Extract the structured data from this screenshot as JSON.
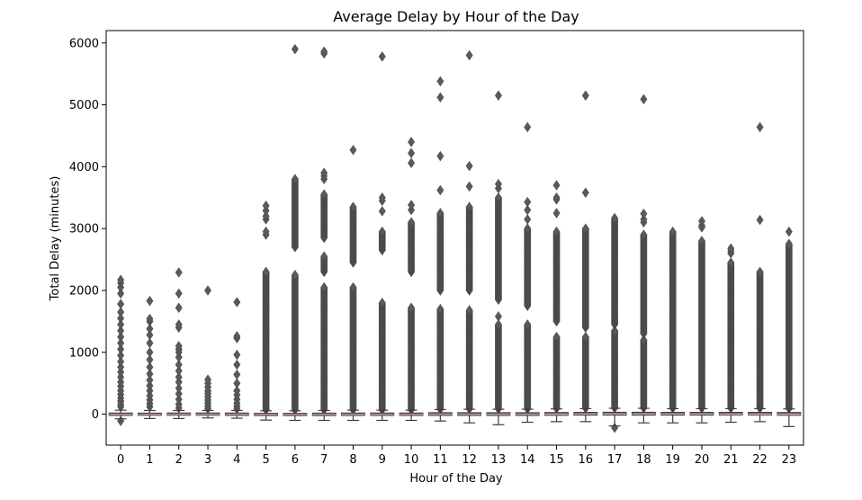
{
  "chart_data": {
    "type": "box",
    "title": "Average Delay by Hour of the Day",
    "xlabel": "Hour of the Day",
    "ylabel": "Total Delay (minutes)",
    "ylim": [
      -500,
      6200
    ],
    "yticks": [
      0,
      1000,
      2000,
      3000,
      4000,
      5000,
      6000
    ],
    "categories": [
      "0",
      "1",
      "2",
      "3",
      "4",
      "5",
      "6",
      "7",
      "8",
      "9",
      "10",
      "11",
      "12",
      "13",
      "14",
      "15",
      "16",
      "17",
      "18",
      "19",
      "20",
      "21",
      "22",
      "23"
    ],
    "grid": false,
    "colors": {
      "box": "#6a6a6a",
      "outlier": "#5a5a5a",
      "median": "#d9a8a8"
    },
    "boxes": [
      {
        "q1": -20,
        "median": -5,
        "q3": 20,
        "whisker_low": -75,
        "whisker_high": 65,
        "outliers": [
          -110,
          120,
          160,
          210,
          260,
          320,
          380,
          450,
          520,
          600,
          680,
          760,
          850,
          950,
          1050,
          1150,
          1250,
          1350,
          1450,
          1550,
          1650,
          1780,
          1950,
          2050,
          2120,
          2170
        ]
      },
      {
        "q1": -18,
        "median": -5,
        "q3": 18,
        "whisker_low": -70,
        "whisker_high": 60,
        "outliers": [
          120,
          170,
          230,
          300,
          380,
          460,
          550,
          650,
          760,
          880,
          1000,
          1150,
          1280,
          1380,
          1500,
          1540,
          1830
        ]
      },
      {
        "q1": -18,
        "median": -5,
        "q3": 20,
        "whisker_low": -70,
        "whisker_high": 60,
        "outliers": [
          100,
          160,
          240,
          330,
          420,
          520,
          600,
          700,
          800,
          920,
          1000,
          1050,
          1100,
          1400,
          1450,
          1720,
          1950,
          2290
        ]
      },
      {
        "q1": -18,
        "median": -5,
        "q3": 20,
        "whisker_low": -60,
        "whisker_high": 60,
        "outliers": [
          90,
          130,
          180,
          230,
          280,
          330,
          380,
          440,
          500,
          560,
          2000
        ]
      },
      {
        "q1": -20,
        "median": -5,
        "q3": 20,
        "whisker_low": -65,
        "whisker_high": 60,
        "outliers": [
          90,
          130,
          180,
          240,
          310,
          380,
          500,
          640,
          800,
          960,
          1230,
          1260,
          1810
        ]
      },
      {
        "q1": -22,
        "median": -5,
        "q3": 15,
        "whisker_low": -95,
        "whisker_high": 55,
        "dense_outliers": [
          [
            70,
            2300
          ]
        ],
        "outliers": [
          2900,
          2950,
          3150,
          3200,
          3290,
          3370
        ]
      },
      {
        "q1": -22,
        "median": -5,
        "q3": 15,
        "whisker_low": -100,
        "whisker_high": 55,
        "dense_outliers": [
          [
            70,
            2250
          ],
          [
            2700,
            3800
          ]
        ],
        "outliers": [
          5900
        ]
      },
      {
        "q1": -22,
        "median": -5,
        "q3": 18,
        "whisker_low": -100,
        "whisker_high": 60,
        "dense_outliers": [
          [
            70,
            2050
          ],
          [
            2300,
            2550
          ],
          [
            2850,
            3550
          ]
        ],
        "outliers": [
          3800,
          3850,
          3900,
          5830,
          5860
        ]
      },
      {
        "q1": -20,
        "median": -5,
        "q3": 20,
        "whisker_low": -100,
        "whisker_high": 65,
        "dense_outliers": [
          [
            70,
            2050
          ],
          [
            2450,
            3350
          ]
        ],
        "outliers": [
          4270
        ]
      },
      {
        "q1": -20,
        "median": -5,
        "q3": 20,
        "whisker_low": -100,
        "whisker_high": 65,
        "dense_outliers": [
          [
            70,
            1800
          ],
          [
            2650,
            2950
          ]
        ],
        "outliers": [
          3280,
          3450,
          3500,
          5780
        ]
      },
      {
        "q1": -20,
        "median": -5,
        "q3": 20,
        "whisker_low": -100,
        "whisker_high": 65,
        "dense_outliers": [
          [
            70,
            1720
          ],
          [
            2300,
            3100
          ]
        ],
        "outliers": [
          3300,
          3380,
          4060,
          4220,
          4400
        ]
      },
      {
        "q1": -20,
        "median": -3,
        "q3": 25,
        "whisker_low": -110,
        "whisker_high": 75,
        "dense_outliers": [
          [
            80,
            1700
          ],
          [
            2000,
            3250
          ]
        ],
        "outliers": [
          3620,
          4170,
          5120,
          5380
        ]
      },
      {
        "q1": -20,
        "median": -3,
        "q3": 25,
        "whisker_low": -140,
        "whisker_high": 80,
        "dense_outliers": [
          [
            85,
            1680
          ],
          [
            2000,
            3350
          ]
        ],
        "outliers": [
          3680,
          4010,
          5800
        ]
      },
      {
        "q1": -20,
        "median": -3,
        "q3": 25,
        "whisker_low": -170,
        "whisker_high": 80,
        "dense_outliers": [
          [
            85,
            1450
          ],
          [
            1850,
            3500
          ]
        ],
        "outliers": [
          1580,
          3650,
          3720,
          5150
        ]
      },
      {
        "q1": -20,
        "median": -3,
        "q3": 25,
        "whisker_low": -130,
        "whisker_high": 80,
        "dense_outliers": [
          [
            85,
            1450
          ],
          [
            1750,
            3000
          ]
        ],
        "outliers": [
          3150,
          3300,
          3430,
          4640
        ]
      },
      {
        "q1": -18,
        "median": 0,
        "q3": 28,
        "whisker_low": -120,
        "whisker_high": 85,
        "dense_outliers": [
          [
            90,
            1250
          ],
          [
            1500,
            2950
          ]
        ],
        "outliers": [
          3250,
          3470,
          3500,
          3700
        ]
      },
      {
        "q1": -15,
        "median": 2,
        "q3": 30,
        "whisker_low": -120,
        "whisker_high": 90,
        "dense_outliers": [
          [
            95,
            1250
          ],
          [
            1400,
            3000
          ]
        ],
        "outliers": [
          3580,
          5150
        ]
      },
      {
        "q1": -15,
        "median": 2,
        "q3": 32,
        "whisker_low": -190,
        "whisker_high": 95,
        "dense_outliers": [
          [
            100,
            1350
          ],
          [
            1450,
            3150
          ]
        ],
        "outliers": [
          -220,
          3170
        ]
      },
      {
        "q1": -15,
        "median": 2,
        "q3": 32,
        "whisker_low": -140,
        "whisker_high": 95,
        "dense_outliers": [
          [
            100,
            1200
          ],
          [
            1300,
            2900
          ]
        ],
        "outliers": [
          3100,
          3150,
          3240,
          5090
        ]
      },
      {
        "q1": -15,
        "median": 2,
        "q3": 30,
        "whisker_low": -140,
        "whisker_high": 90,
        "dense_outliers": [
          [
            95,
            2950
          ]
        ],
        "outliers": []
      },
      {
        "q1": -15,
        "median": 2,
        "q3": 30,
        "whisker_low": -140,
        "whisker_high": 90,
        "dense_outliers": [
          [
            95,
            2800
          ]
        ],
        "outliers": [
          3020,
          3050,
          3120
        ]
      },
      {
        "q1": -15,
        "median": 0,
        "q3": 30,
        "whisker_low": -130,
        "whisker_high": 90,
        "dense_outliers": [
          [
            95,
            2450
          ]
        ],
        "outliers": [
          2600,
          2640,
          2680
        ]
      },
      {
        "q1": -15,
        "median": 0,
        "q3": 30,
        "whisker_low": -120,
        "whisker_high": 90,
        "dense_outliers": [
          [
            95,
            2300
          ]
        ],
        "outliers": [
          3140,
          4640
        ]
      },
      {
        "q1": -18,
        "median": -2,
        "q3": 28,
        "whisker_low": -200,
        "whisker_high": 85,
        "dense_outliers": [
          [
            90,
            2750
          ]
        ],
        "outliers": [
          2950
        ]
      }
    ]
  }
}
